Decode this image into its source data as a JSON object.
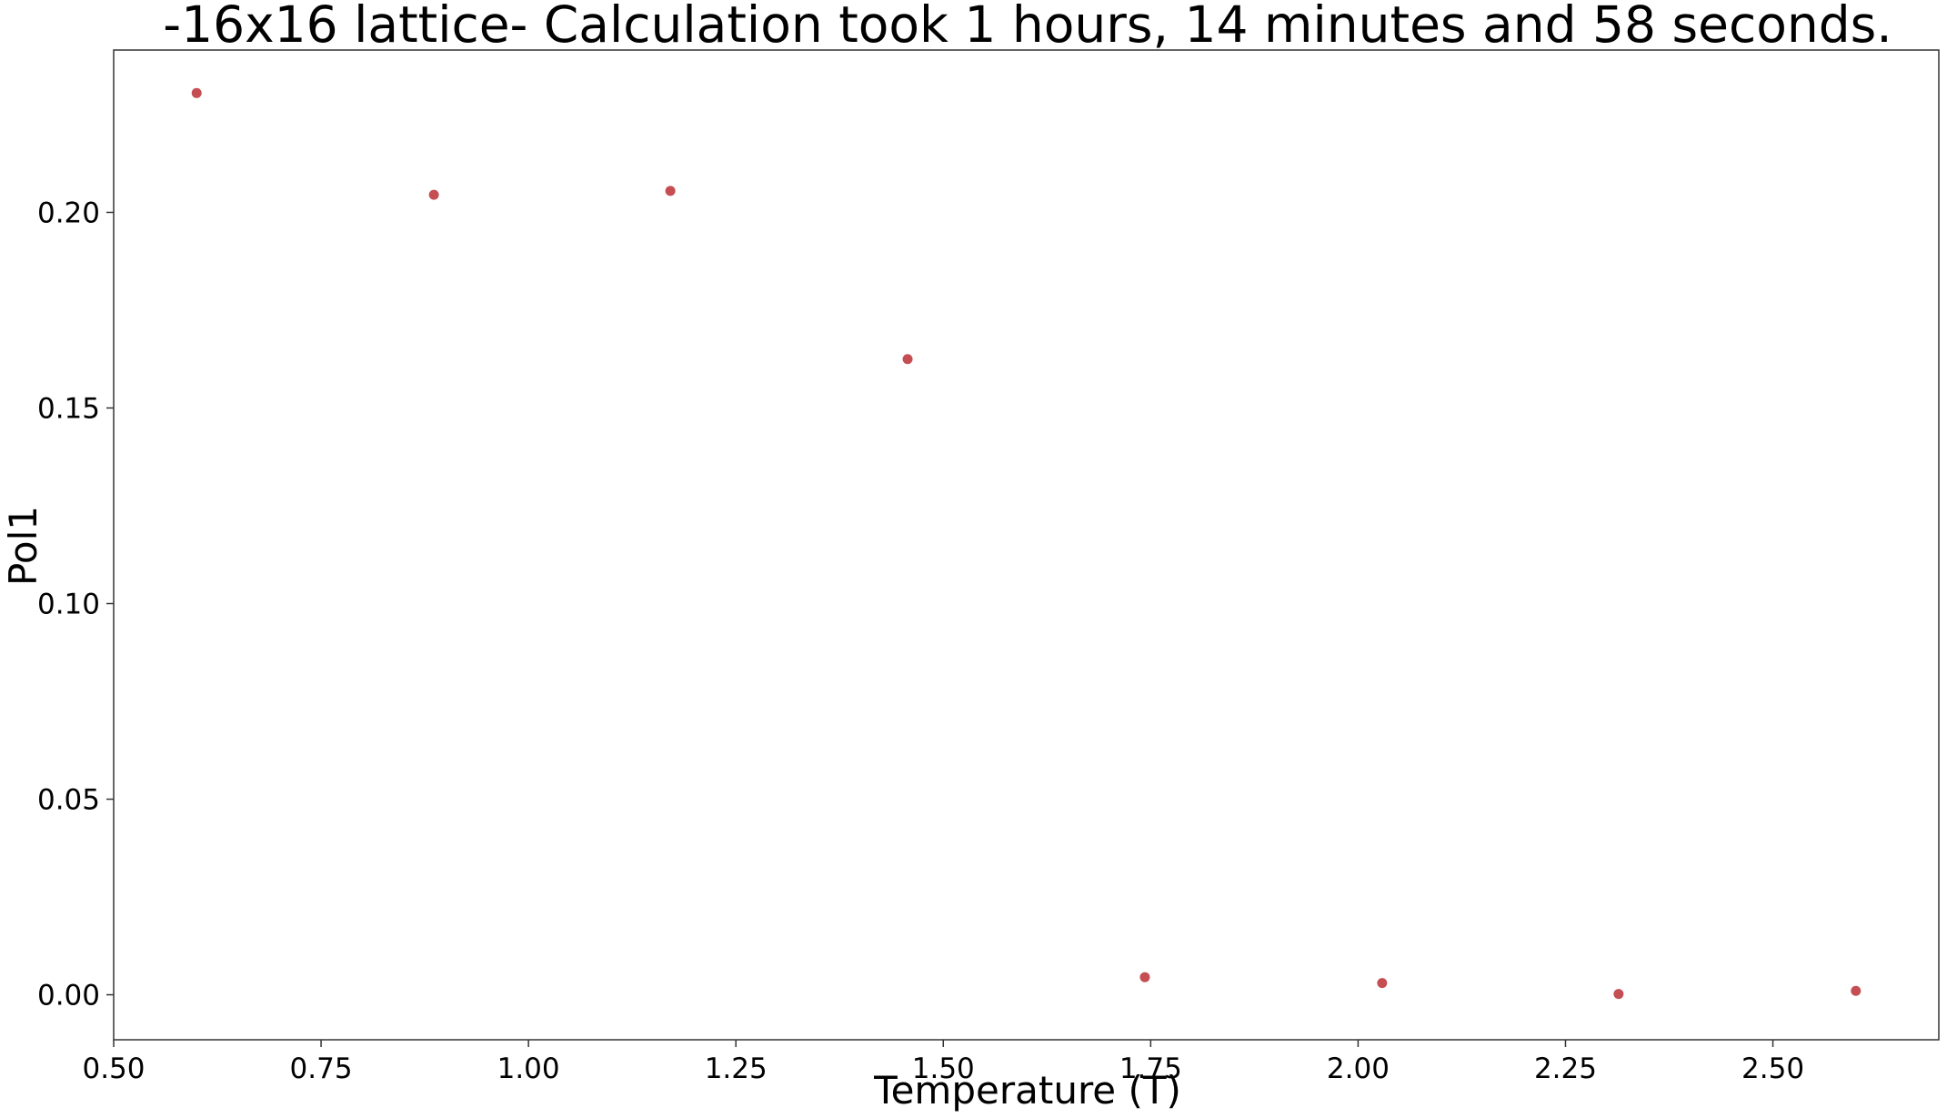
{
  "chart_data": {
    "type": "scatter",
    "title": "-16x16 lattice- Calculation took 1 hours, 14 minutes and 58 seconds.",
    "xlabel": "Temperature (T)",
    "ylabel": "Pol1",
    "xlim": [
      0.5,
      2.7
    ],
    "ylim": [
      -0.0115,
      0.2415
    ],
    "x_ticks": [
      0.5,
      0.75,
      1.0,
      1.25,
      1.5,
      1.75,
      2.0,
      2.25,
      2.5
    ],
    "x_tick_labels": [
      "0.50",
      "0.75",
      "1.00",
      "1.25",
      "1.50",
      "1.75",
      "2.00",
      "2.25",
      "2.50"
    ],
    "y_ticks": [
      0.0,
      0.05,
      0.1,
      0.15,
      0.2
    ],
    "y_tick_labels": [
      "0.00",
      "0.05",
      "0.10",
      "0.15",
      "0.20"
    ],
    "grid": false,
    "marker_color": "#c44e52",
    "series": [
      {
        "x": [
          0.6,
          0.886,
          1.171,
          1.457,
          1.743,
          2.029,
          2.314,
          2.6
        ],
        "y": [
          0.2305,
          0.2045,
          0.2055,
          0.1625,
          0.0045,
          0.003,
          0.0002,
          0.001
        ]
      }
    ]
  }
}
